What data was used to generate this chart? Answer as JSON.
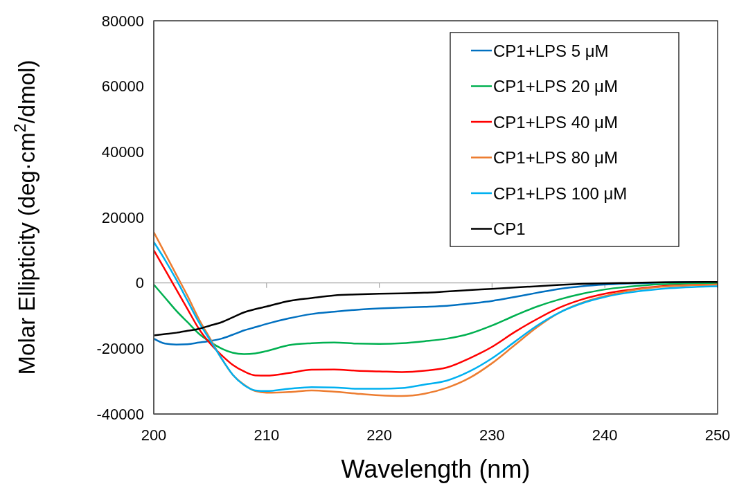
{
  "chart_data": {
    "type": "line",
    "xlabel": "Wavelength (nm)",
    "ylabel": "Molar Ellipticity (deg·cm$^{2}$/dmol)",
    "x": [
      200,
      201,
      202,
      203,
      204,
      205,
      206,
      207,
      208,
      209,
      210,
      212,
      214,
      216,
      218,
      220,
      222,
      224,
      226,
      228,
      230,
      232,
      234,
      236,
      238,
      240,
      242,
      245,
      250
    ],
    "series": [
      {
        "name": "CP1+LPS 5 μM",
        "color": "#0070c0",
        "values": [
          -17000,
          -18500,
          -18800,
          -18700,
          -18200,
          -17700,
          -17000,
          -15800,
          -14500,
          -13500,
          -12500,
          -10800,
          -9500,
          -8800,
          -8200,
          -7800,
          -7500,
          -7300,
          -7000,
          -6300,
          -5500,
          -4300,
          -3000,
          -1800,
          -1000,
          -500,
          -200,
          100,
          300
        ]
      },
      {
        "name": "CP1+LPS 20 μM",
        "color": "#00b050",
        "values": [
          -500,
          -4500,
          -8500,
          -12000,
          -15500,
          -18000,
          -20000,
          -21300,
          -21700,
          -21500,
          -20800,
          -19000,
          -18400,
          -18200,
          -18500,
          -18600,
          -18400,
          -17800,
          -17000,
          -15500,
          -13000,
          -10000,
          -7200,
          -5000,
          -3300,
          -2000,
          -1200,
          -400,
          0
        ]
      },
      {
        "name": "CP1+LPS 40 μM",
        "color": "#ff0000",
        "values": [
          10000,
          4000,
          -2000,
          -8000,
          -14000,
          -18500,
          -22000,
          -25000,
          -27000,
          -28200,
          -28300,
          -27500,
          -26500,
          -26400,
          -26800,
          -27000,
          -27200,
          -26800,
          -25800,
          -23000,
          -19500,
          -15000,
          -11000,
          -7500,
          -5000,
          -3300,
          -2200,
          -1000,
          -500
        ]
      },
      {
        "name": "CP1+LPS 80 μM",
        "color": "#ed7d31",
        "values": [
          15500,
          9000,
          2500,
          -4000,
          -11000,
          -17000,
          -23000,
          -28000,
          -31000,
          -33000,
          -33500,
          -33300,
          -32800,
          -33200,
          -33800,
          -34300,
          -34500,
          -33800,
          -32000,
          -29000,
          -24500,
          -19000,
          -13500,
          -9000,
          -6000,
          -4000,
          -2500,
          -1200,
          -500
        ]
      },
      {
        "name": "CP1+LPS 100 μM",
        "color": "#00b0f0",
        "values": [
          12500,
          7000,
          1000,
          -5500,
          -12000,
          -17500,
          -23000,
          -28000,
          -31200,
          -32800,
          -33000,
          -32300,
          -31800,
          -31900,
          -32300,
          -32300,
          -32100,
          -31000,
          -29800,
          -27000,
          -23000,
          -18000,
          -13000,
          -9000,
          -6200,
          -4300,
          -3000,
          -1800,
          -1000
        ]
      },
      {
        "name": "CP1",
        "color": "#000000",
        "values": [
          -16000,
          -15600,
          -15200,
          -14600,
          -14000,
          -13000,
          -12000,
          -10500,
          -9000,
          -8000,
          -7200,
          -5500,
          -4600,
          -3800,
          -3500,
          -3300,
          -3200,
          -3000,
          -2600,
          -2200,
          -1800,
          -1400,
          -1000,
          -600,
          -300,
          -100,
          0,
          200,
          300
        ]
      }
    ],
    "xlim": [
      200,
      250
    ],
    "xticks": [
      200,
      210,
      220,
      230,
      240,
      250
    ],
    "ylim": [
      -40000,
      80000
    ],
    "yticks": [
      -40000,
      -20000,
      0,
      20000,
      40000,
      60000,
      80000
    ],
    "ref_lines": [
      {
        "axis": "y",
        "value": 0,
        "color": "#a6a6a6"
      }
    ],
    "grid": false,
    "legend": "top right",
    "line_style": "solid"
  }
}
